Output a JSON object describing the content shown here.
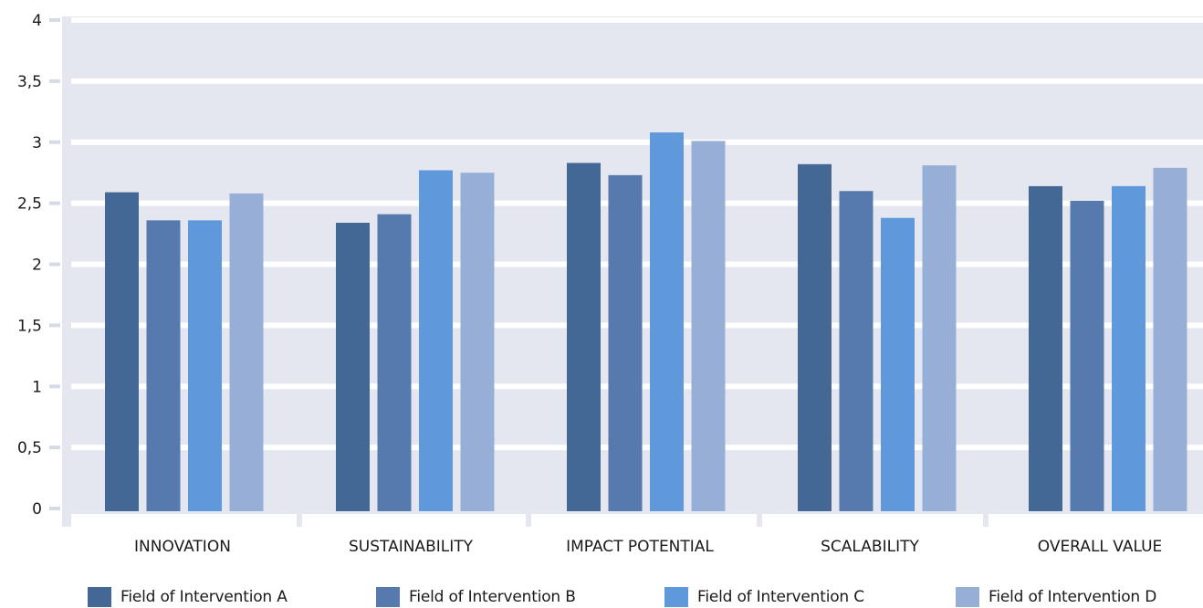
{
  "chart_data": {
    "type": "bar",
    "categories": [
      "INNOVATION",
      "SUSTAINABILITY",
      "IMPACT POTENTIAL",
      "SCALABILITY",
      "OVERALL VALUE"
    ],
    "series": [
      {
        "name": "Field of Intervention A",
        "values": [
          2.59,
          2.34,
          2.83,
          2.82,
          2.64
        ],
        "color": "#436896"
      },
      {
        "name": "Field of Intervention B",
        "values": [
          2.36,
          2.41,
          2.73,
          2.6,
          2.52
        ],
        "color": "#567aad"
      },
      {
        "name": "Field of Intervention C",
        "values": [
          2.36,
          2.77,
          3.08,
          2.38,
          2.64
        ],
        "color": "#6098dc"
      },
      {
        "name": "Field of Intervention D",
        "values": [
          2.58,
          2.75,
          3.01,
          2.81,
          2.79
        ],
        "color": "#97afd7"
      }
    ],
    "y_ticks": [
      "0",
      "0,5",
      "1",
      "1,5",
      "2",
      "2,5",
      "3",
      "3,5",
      "4"
    ],
    "y_tick_values": [
      0,
      0.5,
      1,
      1.5,
      2,
      2.5,
      3,
      3.5,
      4
    ],
    "ylim": [
      0,
      4
    ],
    "grid": true,
    "legend_position": "bottom",
    "plot_background": "#e4e7f0",
    "gridline_color": "#ffffff"
  }
}
